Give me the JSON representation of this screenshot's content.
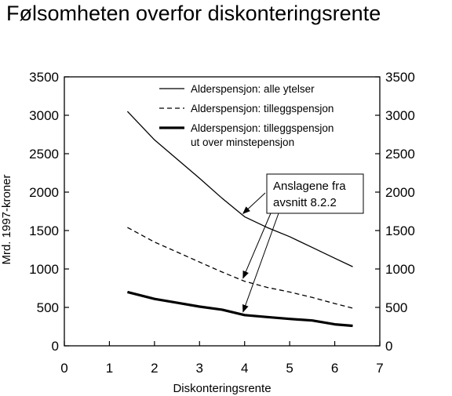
{
  "chart_data": {
    "type": "line",
    "title": "Følsomheten overfor diskonteringsrente",
    "xlabel": "Diskonteringsrente",
    "ylabel": "Mrd. 1997-kroner",
    "xlim": [
      0,
      7
    ],
    "ylim": [
      0,
      3500
    ],
    "xticks": [
      0,
      1,
      2,
      3,
      4,
      5,
      6,
      7
    ],
    "yticks": [
      0,
      500,
      1000,
      1500,
      2000,
      2500,
      3000,
      3500
    ],
    "grid": false,
    "legend_position": "top-right",
    "secondary_y_axis": true,
    "series": [
      {
        "name": "Alderspensjon: alle ytelser",
        "style": "solid-thin",
        "x": [
          1.4,
          2,
          2.5,
          3,
          3.5,
          4,
          4.5,
          5,
          5.5,
          6,
          6.4
        ],
        "values": [
          3050,
          2680,
          2430,
          2180,
          1920,
          1680,
          1540,
          1420,
          1280,
          1140,
          1030
        ]
      },
      {
        "name": "Alderspensjon: tilleggspensjon",
        "style": "dashed",
        "x": [
          1.4,
          2,
          2.5,
          3,
          3.5,
          4,
          4.5,
          5,
          5.5,
          6,
          6.4
        ],
        "values": [
          1540,
          1350,
          1220,
          1090,
          960,
          840,
          760,
          700,
          630,
          550,
          490
        ]
      },
      {
        "name": "Alderspensjon: tilleggspensjon\nut over minstepensjon",
        "legend_lines": [
          "Alderspensjon: tilleggspensjon",
          "ut over minstepensjon"
        ],
        "style": "solid-thick",
        "x": [
          1.4,
          2,
          2.5,
          3,
          3.5,
          4,
          4.5,
          5,
          5.5,
          6,
          6.4
        ],
        "values": [
          700,
          610,
          560,
          510,
          470,
          400,
          375,
          350,
          330,
          280,
          260
        ]
      }
    ],
    "annotation": {
      "lines": [
        "Anslagene fra",
        "avsnitt 8.2.2"
      ],
      "arrow_targets": [
        {
          "x": 4,
          "y": 1680
        },
        {
          "x": 4,
          "y": 840
        },
        {
          "x": 4,
          "y": 400
        }
      ]
    }
  }
}
